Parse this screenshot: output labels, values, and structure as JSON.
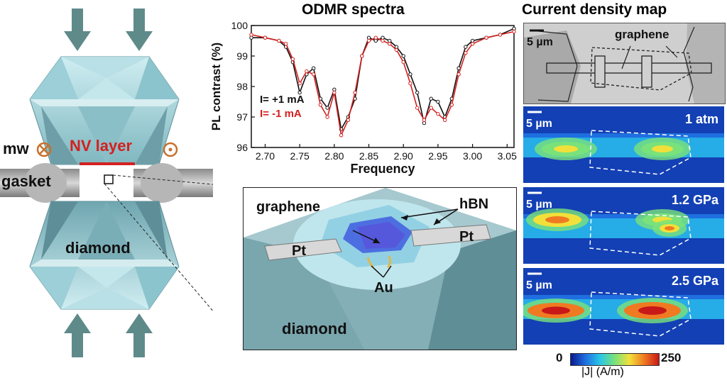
{
  "left_panel": {
    "mw_label": "mw",
    "nv_layer_label": "NV layer",
    "gasket_label": "gasket",
    "diamond_label": "diamond",
    "colors": {
      "nv_layer": "#d42020",
      "mw_symbol": "#c8702a",
      "diamond": "#9fd3da",
      "arrow": "#5f8a8a"
    }
  },
  "odmr": {
    "title": "ODMR spectra",
    "chart_data": {
      "type": "line",
      "title": "ODMR spectra",
      "xlabel": "Frequency",
      "ylabel": "PL contrast (%)",
      "xlim": [
        2.68,
        3.06
      ],
      "ylim": [
        96,
        100
      ],
      "x_ticks": [
        "2.70",
        "2.75",
        "2.80",
        "2.85",
        "2.90",
        "2.95",
        "3.00",
        "3.05"
      ],
      "y_ticks": [
        "96",
        "97",
        "98",
        "99",
        "100"
      ],
      "grid": false,
      "legend_placement": "bottom-left",
      "series": [
        {
          "name": "I= +1 mA",
          "color": "#111111",
          "x": [
            2.68,
            2.7,
            2.72,
            2.73,
            2.74,
            2.75,
            2.76,
            2.77,
            2.78,
            2.79,
            2.8,
            2.81,
            2.82,
            2.83,
            2.84,
            2.85,
            2.86,
            2.87,
            2.88,
            2.89,
            2.9,
            2.91,
            2.92,
            2.93,
            2.94,
            2.95,
            2.96,
            2.97,
            2.98,
            2.99,
            3.0,
            3.02,
            3.04,
            3.06
          ],
          "y": [
            99.6,
            99.6,
            99.5,
            99.3,
            98.8,
            97.8,
            98.4,
            98.6,
            97.6,
            97.3,
            97.9,
            96.6,
            97.0,
            97.6,
            99.0,
            99.6,
            99.5,
            99.6,
            99.5,
            99.3,
            99.0,
            98.4,
            97.8,
            96.8,
            97.6,
            97.5,
            97.0,
            97.6,
            98.6,
            99.3,
            99.5,
            99.6,
            99.7,
            99.9
          ]
        },
        {
          "name": "I= -1 mA",
          "color": "#d42020",
          "x": [
            2.68,
            2.7,
            2.72,
            2.73,
            2.74,
            2.75,
            2.76,
            2.77,
            2.78,
            2.79,
            2.8,
            2.81,
            2.82,
            2.83,
            2.84,
            2.85,
            2.86,
            2.87,
            2.88,
            2.89,
            2.9,
            2.91,
            2.92,
            2.93,
            2.94,
            2.95,
            2.96,
            2.97,
            2.98,
            2.99,
            3.0,
            3.02,
            3.04,
            3.06
          ],
          "y": [
            99.7,
            99.6,
            99.5,
            99.4,
            98.9,
            98.1,
            98.5,
            98.4,
            97.4,
            97.0,
            97.8,
            96.4,
            96.9,
            97.8,
            99.0,
            99.5,
            99.6,
            99.5,
            99.4,
            99.2,
            98.8,
            98.1,
            97.3,
            96.9,
            97.3,
            97.1,
            96.9,
            97.4,
            98.4,
            99.1,
            99.4,
            99.6,
            99.7,
            99.8
          ]
        }
      ]
    }
  },
  "device": {
    "graphene_label": "graphene",
    "hbn_label": "hBN",
    "pt_left_label": "Pt",
    "pt_right_label": "Pt",
    "au_label": "Au",
    "diamond_label": "diamond"
  },
  "current_map": {
    "title": "Current density map",
    "optical": {
      "scale_label": "5 µm",
      "graphene_label": "graphene"
    },
    "maps": [
      {
        "scale_label": "5 µm",
        "condition": "1 atm"
      },
      {
        "scale_label": "5 µm",
        "condition": "1.2 GPa"
      },
      {
        "scale_label": "5 µm",
        "condition": "2.5 GPa"
      }
    ],
    "colorbar": {
      "min_label": "0",
      "max_label": "250",
      "quantity_label": "|J| (A/m)",
      "colors": [
        "#0a1a8f",
        "#1f6fe0",
        "#29c6e8",
        "#7ae27a",
        "#f2e03a",
        "#f07a22",
        "#c81818"
      ]
    }
  }
}
